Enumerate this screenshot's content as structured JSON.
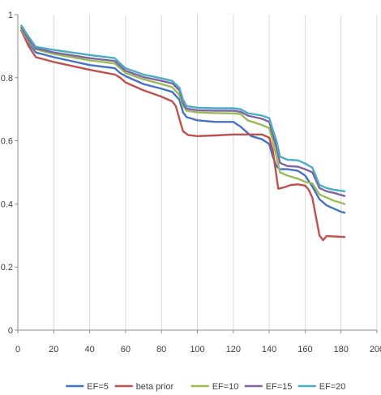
{
  "chart_data": {
    "type": "line",
    "title": "",
    "xlabel": "",
    "ylabel": "",
    "xlim": [
      0,
      200
    ],
    "ylim": [
      0,
      1
    ],
    "xticks": [
      0,
      20,
      40,
      60,
      80,
      100,
      120,
      140,
      160,
      180,
      200
    ],
    "yticks": [
      0,
      0.2,
      0.4,
      0.6,
      0.8,
      1
    ],
    "xtick_labels": [
      "0",
      "20",
      "40",
      "60",
      "80",
      "100",
      "120",
      "140",
      "160",
      "180",
      "200"
    ],
    "ytick_labels": [
      "0",
      "0.2",
      "0.4",
      "0.6",
      "0.8",
      "1"
    ],
    "grid": "vertical",
    "legend_position": "bottom",
    "series": [
      {
        "name": "EF=5",
        "color": "#4472C4",
        "points": [
          [
            2,
            0.95
          ],
          [
            6,
            0.91
          ],
          [
            10,
            0.88
          ],
          [
            20,
            0.865
          ],
          [
            40,
            0.84
          ],
          [
            54,
            0.83
          ],
          [
            57,
            0.815
          ],
          [
            60,
            0.805
          ],
          [
            70,
            0.78
          ],
          [
            80,
            0.765
          ],
          [
            86,
            0.755
          ],
          [
            90,
            0.73
          ],
          [
            92,
            0.69
          ],
          [
            94,
            0.675
          ],
          [
            100,
            0.665
          ],
          [
            110,
            0.66
          ],
          [
            120,
            0.66
          ],
          [
            124,
            0.645
          ],
          [
            130,
            0.615
          ],
          [
            136,
            0.605
          ],
          [
            140,
            0.59
          ],
          [
            142,
            0.55
          ],
          [
            144,
            0.52
          ],
          [
            146,
            0.51
          ],
          [
            150,
            0.51
          ],
          [
            156,
            0.505
          ],
          [
            160,
            0.49
          ],
          [
            164,
            0.455
          ],
          [
            168,
            0.415
          ],
          [
            172,
            0.395
          ],
          [
            176,
            0.385
          ],
          [
            180,
            0.375
          ],
          [
            182,
            0.372
          ]
        ]
      },
      {
        "name": "beta prior",
        "color": "#C0504D",
        "points": [
          [
            2,
            0.95
          ],
          [
            6,
            0.9
          ],
          [
            10,
            0.865
          ],
          [
            20,
            0.85
          ],
          [
            40,
            0.825
          ],
          [
            54,
            0.81
          ],
          [
            57,
            0.8
          ],
          [
            60,
            0.785
          ],
          [
            70,
            0.76
          ],
          [
            80,
            0.74
          ],
          [
            86,
            0.725
          ],
          [
            88,
            0.71
          ],
          [
            90,
            0.67
          ],
          [
            92,
            0.63
          ],
          [
            95,
            0.618
          ],
          [
            100,
            0.615
          ],
          [
            110,
            0.617
          ],
          [
            120,
            0.62
          ],
          [
            130,
            0.62
          ],
          [
            136,
            0.62
          ],
          [
            140,
            0.61
          ],
          [
            142,
            0.57
          ],
          [
            144,
            0.49
          ],
          [
            145,
            0.448
          ],
          [
            148,
            0.452
          ],
          [
            152,
            0.46
          ],
          [
            156,
            0.462
          ],
          [
            160,
            0.458
          ],
          [
            162,
            0.445
          ],
          [
            164,
            0.42
          ],
          [
            166,
            0.36
          ],
          [
            168,
            0.3
          ],
          [
            170,
            0.285
          ],
          [
            172,
            0.298
          ],
          [
            176,
            0.297
          ],
          [
            182,
            0.295
          ]
        ]
      },
      {
        "name": "EF=10",
        "color": "#9BBB59",
        "points": [
          [
            2,
            0.955
          ],
          [
            6,
            0.915
          ],
          [
            10,
            0.89
          ],
          [
            20,
            0.875
          ],
          [
            40,
            0.855
          ],
          [
            54,
            0.845
          ],
          [
            57,
            0.83
          ],
          [
            60,
            0.815
          ],
          [
            70,
            0.795
          ],
          [
            80,
            0.78
          ],
          [
            86,
            0.77
          ],
          [
            90,
            0.745
          ],
          [
            92,
            0.71
          ],
          [
            94,
            0.695
          ],
          [
            100,
            0.69
          ],
          [
            110,
            0.688
          ],
          [
            120,
            0.687
          ],
          [
            124,
            0.685
          ],
          [
            128,
            0.665
          ],
          [
            136,
            0.65
          ],
          [
            140,
            0.64
          ],
          [
            142,
            0.6
          ],
          [
            144,
            0.55
          ],
          [
            146,
            0.5
          ],
          [
            150,
            0.49
          ],
          [
            156,
            0.48
          ],
          [
            160,
            0.47
          ],
          [
            164,
            0.465
          ],
          [
            168,
            0.43
          ],
          [
            172,
            0.42
          ],
          [
            176,
            0.41
          ],
          [
            182,
            0.4
          ]
        ]
      },
      {
        "name": "EF=15",
        "color": "#8064A2",
        "points": [
          [
            2,
            0.96
          ],
          [
            6,
            0.92
          ],
          [
            10,
            0.893
          ],
          [
            20,
            0.88
          ],
          [
            40,
            0.862
          ],
          [
            54,
            0.853
          ],
          [
            57,
            0.837
          ],
          [
            60,
            0.822
          ],
          [
            70,
            0.802
          ],
          [
            80,
            0.79
          ],
          [
            86,
            0.782
          ],
          [
            90,
            0.76
          ],
          [
            92,
            0.72
          ],
          [
            94,
            0.702
          ],
          [
            100,
            0.697
          ],
          [
            110,
            0.695
          ],
          [
            120,
            0.695
          ],
          [
            124,
            0.692
          ],
          [
            128,
            0.68
          ],
          [
            136,
            0.67
          ],
          [
            140,
            0.66
          ],
          [
            142,
            0.62
          ],
          [
            144,
            0.58
          ],
          [
            146,
            0.53
          ],
          [
            150,
            0.52
          ],
          [
            156,
            0.518
          ],
          [
            160,
            0.51
          ],
          [
            164,
            0.5
          ],
          [
            168,
            0.45
          ],
          [
            172,
            0.44
          ],
          [
            176,
            0.435
          ],
          [
            182,
            0.425
          ]
        ]
      },
      {
        "name": "EF=20",
        "color": "#4BACC6",
        "points": [
          [
            2,
            0.965
          ],
          [
            6,
            0.93
          ],
          [
            10,
            0.898
          ],
          [
            20,
            0.888
          ],
          [
            40,
            0.872
          ],
          [
            54,
            0.862
          ],
          [
            57,
            0.845
          ],
          [
            60,
            0.83
          ],
          [
            70,
            0.81
          ],
          [
            80,
            0.798
          ],
          [
            86,
            0.79
          ],
          [
            90,
            0.768
          ],
          [
            92,
            0.73
          ],
          [
            94,
            0.71
          ],
          [
            100,
            0.705
          ],
          [
            110,
            0.703
          ],
          [
            120,
            0.703
          ],
          [
            124,
            0.7
          ],
          [
            128,
            0.688
          ],
          [
            136,
            0.68
          ],
          [
            140,
            0.672
          ],
          [
            142,
            0.635
          ],
          [
            144,
            0.6
          ],
          [
            146,
            0.55
          ],
          [
            150,
            0.54
          ],
          [
            156,
            0.538
          ],
          [
            160,
            0.528
          ],
          [
            164,
            0.515
          ],
          [
            168,
            0.46
          ],
          [
            172,
            0.45
          ],
          [
            176,
            0.445
          ],
          [
            182,
            0.44
          ]
        ]
      }
    ]
  }
}
